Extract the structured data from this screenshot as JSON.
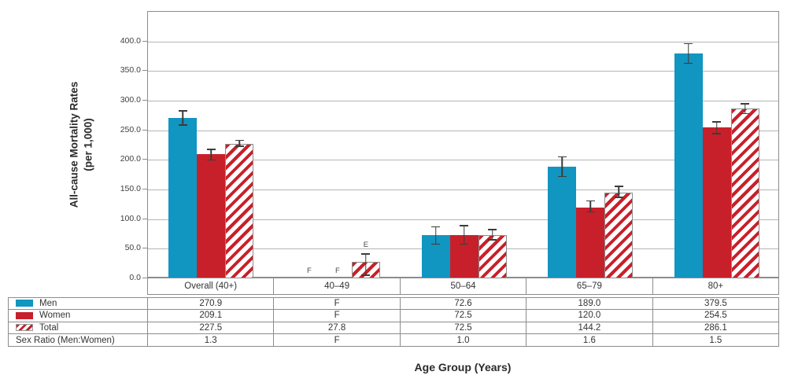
{
  "colors": {
    "men_blue": "#1195c1",
    "women_red": "#c8202a",
    "hatch_red": "#c8202a",
    "grid": "#b5b5b5",
    "frame": "#8c8c8c",
    "error_bar": "#3c3c3c",
    "text": "#333333"
  },
  "chart_data": {
    "type": "bar",
    "title": "",
    "xlabel": "Age Group (Years)",
    "ylabel_line1": "All-cause Mortality Rates",
    "ylabel_line2": "(per 1,000)",
    "ylim": [
      0,
      450
    ],
    "ytick_step": 50,
    "yticks": [
      {
        "value": 0,
        "label": "0.0"
      },
      {
        "value": 50,
        "label": "50.0"
      },
      {
        "value": 100,
        "label": "100.0"
      },
      {
        "value": 150,
        "label": "150.0"
      },
      {
        "value": 200,
        "label": "200.0"
      },
      {
        "value": 250,
        "label": "250.0"
      },
      {
        "value": 300,
        "label": "300.0"
      },
      {
        "value": 350,
        "label": "350.0"
      },
      {
        "value": 400,
        "label": "400.0"
      }
    ],
    "grid": true,
    "legend_position": "table-left",
    "categories": [
      "Overall (40+)",
      "40–49",
      "50–64",
      "65–79",
      "80+"
    ],
    "series": [
      {
        "name": "Men",
        "style": "solid-blue",
        "values": [
          270.9,
          null,
          72.6,
          189.0,
          379.5
        ],
        "display": [
          "270.9",
          "F",
          "72.6",
          "189.0",
          "379.5"
        ],
        "error_lo": [
          258,
          null,
          57,
          171,
          362
        ],
        "error_hi": [
          284,
          null,
          88,
          206,
          397
        ]
      },
      {
        "name": "Women",
        "style": "solid-red",
        "values": [
          209.1,
          null,
          72.5,
          120.0,
          254.5
        ],
        "display": [
          "209.1",
          "F",
          "72.5",
          "120.0",
          "254.5"
        ],
        "error_lo": [
          199,
          null,
          57,
          111,
          243
        ],
        "error_hi": [
          219,
          null,
          90,
          132,
          265
        ]
      },
      {
        "name": "Total",
        "style": "hatch-red",
        "values": [
          227.5,
          27.8,
          72.5,
          144.2,
          286.1
        ],
        "display": [
          "227.5",
          "27.8",
          "72.5",
          "144.2",
          "286.1"
        ],
        "error_lo": [
          222,
          4,
          64,
          136,
          277
        ],
        "error_hi": [
          234,
          42,
          83,
          156,
          296
        ]
      }
    ],
    "flags": {
      "suppressed": "F",
      "estimate": "E",
      "estimate_marks": [
        {
          "series_index": 2,
          "category_index": 1
        }
      ]
    },
    "table": {
      "rows": [
        {
          "label": "Men",
          "swatch": "solid-blue",
          "values": [
            "270.9",
            "F",
            "72.6",
            "189.0",
            "379.5"
          ]
        },
        {
          "label": "Women",
          "swatch": "solid-red",
          "values": [
            "209.1",
            "F",
            "72.5",
            "120.0",
            "254.5"
          ]
        },
        {
          "label": "Total",
          "swatch": "hatch-red",
          "values": [
            "227.5",
            "27.8",
            "72.5",
            "144.2",
            "286.1"
          ]
        },
        {
          "label": "Sex Ratio (Men:Women)",
          "swatch": null,
          "values": [
            "1.3",
            "F",
            "1.0",
            "1.6",
            "1.5"
          ]
        }
      ]
    }
  }
}
